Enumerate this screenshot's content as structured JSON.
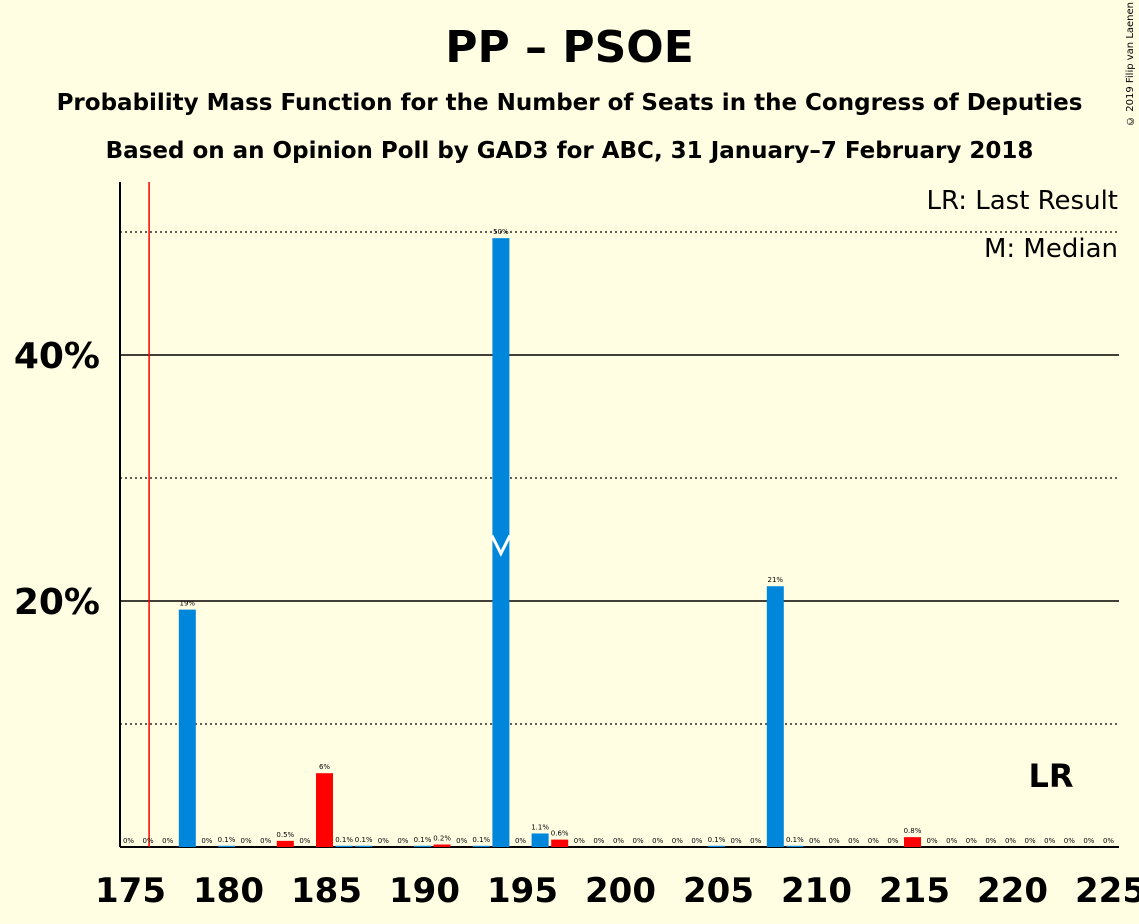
{
  "copyright": "© 2019 Filip van Laenen",
  "chart_data": {
    "type": "bar",
    "title": "PP – PSOE",
    "subtitle1": "Probability Mass Function for the Number of Seats in the Congress of Deputies",
    "subtitle2": "Based on an Opinion Poll by GAD3 for ABC, 31 January–7 February 2018",
    "xlabel": "",
    "ylabel": "",
    "xlim": [
      175,
      225
    ],
    "ylim": [
      0,
      54
    ],
    "x_ticks": [
      175,
      180,
      185,
      190,
      195,
      200,
      205,
      210,
      215,
      220,
      225
    ],
    "y_major_ticks": [
      20,
      40
    ],
    "y_major_tick_labels": [
      "20%",
      "40%"
    ],
    "y_minor_gridlines": [
      10,
      30,
      50
    ],
    "last_result_seat": 176,
    "median_seat": 194,
    "legend": [
      "LR: Last Result",
      "M: Median"
    ],
    "legend_position": "top-right",
    "lr_label": "LR",
    "colors": {
      "blue": "#0087DC",
      "red": "#FF0000",
      "lr_line": "#FF0000",
      "background": "#FFFEE3"
    },
    "bars": [
      {
        "seat": 175,
        "value": 0,
        "label": "0%",
        "color": "blue"
      },
      {
        "seat": 176,
        "value": 0,
        "label": "0%",
        "color": "blue"
      },
      {
        "seat": 177,
        "value": 0,
        "label": "0%",
        "color": "blue"
      },
      {
        "seat": 178,
        "value": 19.3,
        "label": "19%",
        "color": "blue"
      },
      {
        "seat": 179,
        "value": 0,
        "label": "0%",
        "color": "blue"
      },
      {
        "seat": 180,
        "value": 0.1,
        "label": "0.1%",
        "color": "blue"
      },
      {
        "seat": 181,
        "value": 0,
        "label": "0%",
        "color": "blue"
      },
      {
        "seat": 182,
        "value": 0,
        "label": "0%",
        "color": "blue"
      },
      {
        "seat": 183,
        "value": 0.5,
        "label": "0.5%",
        "color": "red"
      },
      {
        "seat": 184,
        "value": 0,
        "label": "0%",
        "color": "blue"
      },
      {
        "seat": 185,
        "value": 6,
        "label": "6%",
        "color": "red"
      },
      {
        "seat": 186,
        "value": 0.1,
        "label": "0.1%",
        "color": "blue"
      },
      {
        "seat": 187,
        "value": 0.1,
        "label": "0.1%",
        "color": "blue"
      },
      {
        "seat": 188,
        "value": 0,
        "label": "0%",
        "color": "blue"
      },
      {
        "seat": 189,
        "value": 0,
        "label": "0%",
        "color": "blue"
      },
      {
        "seat": 190,
        "value": 0.1,
        "label": "0.1%",
        "color": "blue"
      },
      {
        "seat": 191,
        "value": 0.2,
        "label": "0.2%",
        "color": "red"
      },
      {
        "seat": 192,
        "value": 0,
        "label": "0%",
        "color": "blue"
      },
      {
        "seat": 193,
        "value": 0.1,
        "label": "0.1%",
        "color": "blue"
      },
      {
        "seat": 194,
        "value": 49.5,
        "label": "50%",
        "color": "blue"
      },
      {
        "seat": 195,
        "value": 0,
        "label": "0%",
        "color": "blue"
      },
      {
        "seat": 196,
        "value": 1.1,
        "label": "1.1%",
        "color": "blue"
      },
      {
        "seat": 197,
        "value": 0.6,
        "label": "0.6%",
        "color": "red"
      },
      {
        "seat": 198,
        "value": 0,
        "label": "0%",
        "color": "blue"
      },
      {
        "seat": 199,
        "value": 0,
        "label": "0%",
        "color": "blue"
      },
      {
        "seat": 200,
        "value": 0,
        "label": "0%",
        "color": "blue"
      },
      {
        "seat": 201,
        "value": 0,
        "label": "0%",
        "color": "blue"
      },
      {
        "seat": 202,
        "value": 0,
        "label": "0%",
        "color": "blue"
      },
      {
        "seat": 203,
        "value": 0,
        "label": "0%",
        "color": "blue"
      },
      {
        "seat": 204,
        "value": 0,
        "label": "0%",
        "color": "blue"
      },
      {
        "seat": 205,
        "value": 0.1,
        "label": "0.1%",
        "color": "blue"
      },
      {
        "seat": 206,
        "value": 0,
        "label": "0%",
        "color": "blue"
      },
      {
        "seat": 207,
        "value": 0,
        "label": "0%",
        "color": "blue"
      },
      {
        "seat": 208,
        "value": 21.2,
        "label": "21%",
        "color": "blue"
      },
      {
        "seat": 209,
        "value": 0.1,
        "label": "0.1%",
        "color": "blue"
      },
      {
        "seat": 210,
        "value": 0,
        "label": "0%",
        "color": "blue"
      },
      {
        "seat": 211,
        "value": 0,
        "label": "0%",
        "color": "blue"
      },
      {
        "seat": 212,
        "value": 0,
        "label": "0%",
        "color": "blue"
      },
      {
        "seat": 213,
        "value": 0,
        "label": "0%",
        "color": "blue"
      },
      {
        "seat": 214,
        "value": 0,
        "label": "0%",
        "color": "blue"
      },
      {
        "seat": 215,
        "value": 0.8,
        "label": "0.8%",
        "color": "red"
      },
      {
        "seat": 216,
        "value": 0,
        "label": "0%",
        "color": "blue"
      },
      {
        "seat": 217,
        "value": 0,
        "label": "0%",
        "color": "blue"
      },
      {
        "seat": 218,
        "value": 0,
        "label": "0%",
        "color": "blue"
      },
      {
        "seat": 219,
        "value": 0,
        "label": "0%",
        "color": "blue"
      },
      {
        "seat": 220,
        "value": 0,
        "label": "0%",
        "color": "blue"
      },
      {
        "seat": 221,
        "value": 0,
        "label": "0%",
        "color": "blue"
      },
      {
        "seat": 222,
        "value": 0,
        "label": "0%",
        "color": "blue"
      },
      {
        "seat": 223,
        "value": 0,
        "label": "0%",
        "color": "blue"
      },
      {
        "seat": 224,
        "value": 0,
        "label": "0%",
        "color": "blue"
      },
      {
        "seat": 225,
        "value": 0,
        "label": "0%",
        "color": "blue"
      }
    ]
  }
}
